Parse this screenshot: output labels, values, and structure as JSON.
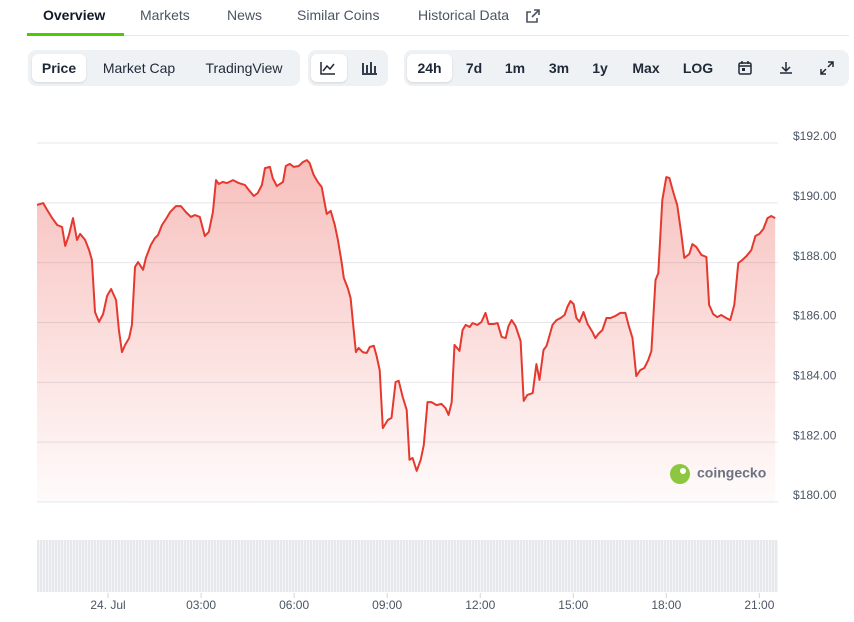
{
  "tabs": [
    "Overview",
    "Markets",
    "News",
    "Similar Coins",
    "Historical Data"
  ],
  "chart_buttons": [
    "Price",
    "Market Cap",
    "TradingView"
  ],
  "range_buttons": [
    "24h",
    "7d",
    "1m",
    "3m",
    "1y",
    "Max",
    "LOG"
  ],
  "watermark": "coingecko",
  "chart_data": {
    "type": "area",
    "color": "#e5392f",
    "grid": true,
    "xlim": [
      -2.29,
      21.6
    ],
    "ylim": [
      180,
      192
    ],
    "xticks": [
      {
        "value": 0,
        "label": "24. Jul"
      },
      {
        "value": 3,
        "label": "03:00"
      },
      {
        "value": 6,
        "label": "06:00"
      },
      {
        "value": 9,
        "label": "09:00"
      },
      {
        "value": 12,
        "label": "12:00"
      },
      {
        "value": 15,
        "label": "15:00"
      },
      {
        "value": 18,
        "label": "18:00"
      },
      {
        "value": 21,
        "label": "21:00"
      }
    ],
    "yticks": [
      {
        "value": 180,
        "label": "$180.00"
      },
      {
        "value": 182,
        "label": "$182.00"
      },
      {
        "value": 184,
        "label": "$184.00"
      },
      {
        "value": 186,
        "label": "$186.00"
      },
      {
        "value": 188,
        "label": "$188.00"
      },
      {
        "value": 190,
        "label": "$190.00"
      },
      {
        "value": 192,
        "label": "$192.00"
      }
    ],
    "x": [
      -2.29,
      -2.09,
      -1.96,
      -1.8,
      -1.64,
      -1.48,
      -1.38,
      -1.26,
      -1.13,
      -1.0,
      -0.9,
      -0.74,
      -0.61,
      -0.52,
      -0.42,
      -0.29,
      -0.16,
      -0.03,
      0.1,
      0.26,
      0.35,
      0.45,
      0.55,
      0.68,
      0.77,
      0.87,
      0.97,
      1.13,
      1.22,
      1.38,
      1.51,
      1.61,
      1.74,
      1.87,
      2.0,
      2.19,
      2.35,
      2.51,
      2.67,
      2.8,
      2.96,
      3.12,
      3.25,
      3.38,
      3.48,
      3.57,
      3.7,
      3.83,
      4.03,
      4.22,
      4.41,
      4.54,
      4.7,
      4.83,
      4.96,
      5.06,
      5.22,
      5.31,
      5.44,
      5.64,
      5.73,
      5.86,
      5.99,
      6.15,
      6.28,
      6.41,
      6.5,
      6.63,
      6.76,
      6.89,
      7.05,
      7.18,
      7.31,
      7.41,
      7.53,
      7.6,
      7.73,
      7.82,
      7.92,
      7.99,
      8.08,
      8.21,
      8.34,
      8.44,
      8.57,
      8.66,
      8.76,
      8.86,
      9.02,
      9.14,
      9.27,
      9.37,
      9.5,
      9.63,
      9.72,
      9.82,
      9.95,
      10.08,
      10.18,
      10.3,
      10.43,
      10.59,
      10.75,
      10.88,
      10.98,
      11.08,
      11.17,
      11.33,
      11.43,
      11.53,
      11.66,
      11.75,
      11.91,
      12.04,
      12.17,
      12.27,
      12.43,
      12.56,
      12.69,
      12.82,
      12.91,
      13.01,
      13.14,
      13.3,
      13.4,
      13.52,
      13.69,
      13.81,
      13.91,
      14.04,
      14.14,
      14.23,
      14.33,
      14.46,
      14.59,
      14.72,
      14.81,
      14.91,
      15.01,
      15.1,
      15.2,
      15.33,
      15.46,
      15.62,
      15.71,
      15.81,
      15.94,
      16.07,
      16.2,
      16.36,
      16.52,
      16.68,
      16.78,
      16.91,
      17.03,
      17.16,
      17.29,
      17.42,
      17.52,
      17.65,
      17.74,
      17.87,
      18.0,
      18.1,
      18.23,
      18.35,
      18.48,
      18.58,
      18.74,
      18.84,
      18.97,
      19.13,
      19.29,
      19.38,
      19.51,
      19.64,
      19.77,
      19.93,
      20.06,
      20.19,
      20.32,
      20.45,
      20.58,
      20.74,
      20.87,
      21.0,
      21.13,
      21.26,
      21.38,
      21.51
    ],
    "values": [
      189.93,
      189.99,
      189.76,
      189.49,
      189.26,
      189.19,
      188.56,
      188.92,
      189.49,
      188.76,
      188.96,
      188.76,
      188.42,
      188.09,
      186.35,
      186.02,
      186.28,
      186.89,
      187.12,
      186.75,
      185.75,
      185.01,
      185.25,
      185.48,
      185.92,
      187.86,
      188.02,
      187.76,
      188.16,
      188.59,
      188.82,
      188.92,
      189.26,
      189.46,
      189.69,
      189.89,
      189.89,
      189.69,
      189.53,
      189.59,
      189.53,
      188.89,
      189.03,
      189.69,
      190.76,
      190.63,
      190.7,
      190.66,
      190.76,
      190.66,
      190.6,
      190.43,
      190.23,
      190.33,
      190.6,
      191.16,
      191.2,
      190.83,
      190.56,
      190.7,
      191.23,
      191.3,
      191.2,
      191.23,
      191.36,
      191.43,
      191.33,
      190.93,
      190.7,
      190.53,
      189.63,
      189.73,
      189.26,
      188.76,
      188.02,
      187.49,
      187.15,
      186.82,
      185.75,
      185.01,
      185.15,
      185.01,
      184.98,
      185.18,
      185.22,
      184.88,
      184.41,
      182.47,
      182.74,
      182.81,
      184.01,
      184.05,
      183.51,
      183.08,
      181.41,
      181.47,
      181.04,
      181.41,
      181.91,
      183.34,
      183.34,
      183.24,
      183.28,
      183.14,
      182.91,
      183.34,
      185.25,
      185.05,
      185.75,
      185.92,
      185.85,
      185.98,
      185.92,
      186.02,
      186.32,
      185.95,
      185.95,
      185.98,
      185.52,
      185.48,
      185.88,
      186.08,
      185.88,
      185.38,
      183.38,
      183.58,
      183.64,
      184.61,
      184.08,
      185.08,
      185.22,
      185.55,
      185.92,
      186.08,
      186.15,
      186.25,
      186.52,
      186.72,
      186.62,
      186.15,
      186.02,
      186.35,
      185.95,
      185.68,
      185.48,
      185.62,
      185.75,
      186.15,
      186.15,
      186.22,
      186.32,
      186.32,
      185.92,
      185.48,
      184.21,
      184.41,
      184.48,
      184.75,
      185.05,
      187.42,
      187.65,
      190.09,
      190.86,
      190.83,
      190.33,
      189.93,
      188.99,
      188.16,
      188.29,
      188.62,
      188.52,
      188.26,
      188.19,
      186.59,
      186.28,
      186.18,
      186.25,
      186.15,
      186.08,
      186.59,
      187.99,
      188.09,
      188.22,
      188.42,
      188.89,
      188.96,
      189.13,
      189.49,
      189.56,
      189.49
    ]
  }
}
